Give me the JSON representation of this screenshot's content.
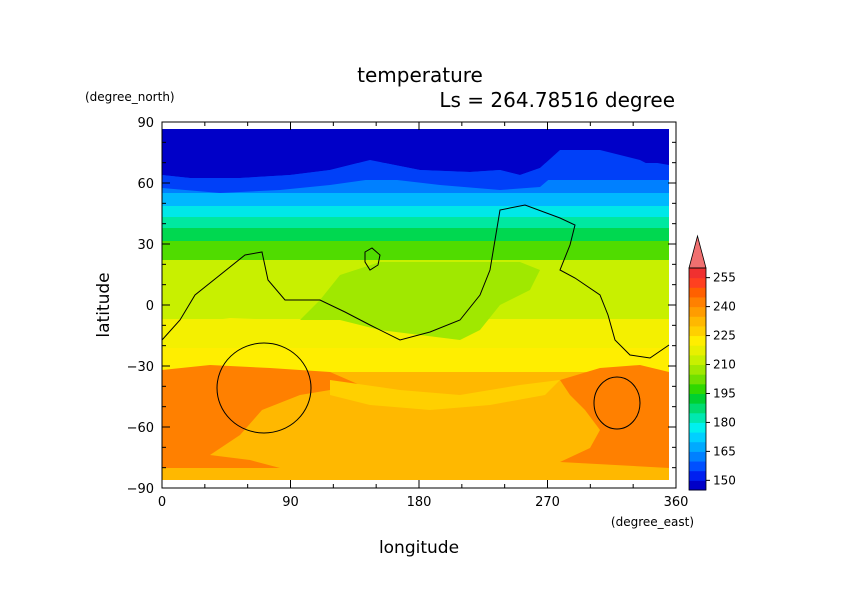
{
  "chart_data": {
    "type": "heatmap",
    "title": "temperature",
    "subtitle": "Ls = 264.78516 degree",
    "xlabel": "longitude",
    "ylabel": "latitude",
    "x_unit": "(degree_east)",
    "y_unit": "(degree_north)",
    "xlim": [
      0,
      360
    ],
    "ylim": [
      -90,
      90
    ],
    "x_ticks": [
      "0",
      "90",
      "180",
      "270",
      "360"
    ],
    "y_ticks": [
      "90",
      "60",
      "30",
      "0",
      "−30",
      "−60",
      "−90"
    ],
    "colorbar": {
      "levels": [
        145,
        150,
        155,
        160,
        165,
        170,
        175,
        180,
        185,
        190,
        195,
        200,
        205,
        210,
        215,
        220,
        225,
        230,
        235,
        240,
        245,
        250,
        255,
        260
      ],
      "labels": [
        "150",
        "165",
        "180",
        "195",
        "210",
        "225",
        "240",
        "255"
      ],
      "colors": [
        "#0000c8",
        "#0020f0",
        "#0050ff",
        "#0080ff",
        "#00aaff",
        "#00d0ff",
        "#00f0ee",
        "#00e8b0",
        "#00dc70",
        "#00d030",
        "#30d800",
        "#70e000",
        "#a0e800",
        "#c8f000",
        "#e8f000",
        "#ffee00",
        "#ffd000",
        "#ffb800",
        "#ff9c00",
        "#ff8000",
        "#ff6000",
        "#ff4020",
        "#f03030",
        "#f07070"
      ]
    },
    "field_zones": [
      {
        "lat_range": [
          60,
          88
        ],
        "temperature": 150
      },
      {
        "lat_range": [
          50,
          60
        ],
        "temperature": 165
      },
      {
        "lat_range": [
          40,
          50
        ],
        "temperature": 185
      },
      {
        "lat_range": [
          30,
          40
        ],
        "temperature": 200
      },
      {
        "lat_range": [
          -15,
          30
        ],
        "temperature": 215
      },
      {
        "lat_range": [
          -40,
          -15
        ],
        "temperature": 225
      },
      {
        "lat_range": [
          -88,
          -40
        ],
        "temperature": 235
      }
    ],
    "contour_topography": true
  }
}
